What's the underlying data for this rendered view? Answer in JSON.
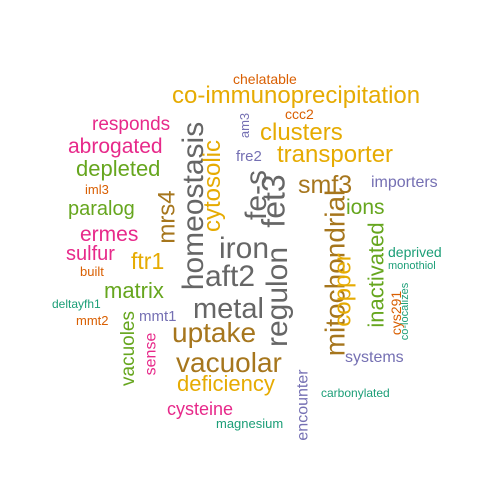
{
  "palette": {
    "teal": "#1b9e77",
    "orange": "#d95f02",
    "purple": "#7570b3",
    "magenta": "#e7298a",
    "green": "#66a61e",
    "gold": "#e6ab02",
    "brown": "#a6761d",
    "gray": "#666666"
  },
  "words": [
    {
      "text": "chelatable",
      "color": "orange"
    },
    {
      "text": "co-immunoprecipitation",
      "color": "gold"
    },
    {
      "text": "responds",
      "color": "magenta"
    },
    {
      "text": "am3",
      "color": "purple"
    },
    {
      "text": "ccc2",
      "color": "orange"
    },
    {
      "text": "clusters",
      "color": "gold"
    },
    {
      "text": "abrogated",
      "color": "magenta"
    },
    {
      "text": "homeostasis",
      "color": "gray"
    },
    {
      "text": "cytosolic",
      "color": "gold"
    },
    {
      "text": "fe-s",
      "color": "gray"
    },
    {
      "text": "fre2",
      "color": "purple"
    },
    {
      "text": "transporter",
      "color": "gold"
    },
    {
      "text": "depleted",
      "color": "green"
    },
    {
      "text": "fet3",
      "color": "gray"
    },
    {
      "text": "smf3",
      "color": "brown"
    },
    {
      "text": "importers",
      "color": "purple"
    },
    {
      "text": "iml3",
      "color": "orange"
    },
    {
      "text": "mrs4",
      "color": "brown"
    },
    {
      "text": "paralog",
      "color": "green"
    },
    {
      "text": "ions",
      "color": "green"
    },
    {
      "text": "ermes",
      "color": "magenta"
    },
    {
      "text": "iron",
      "color": "gray"
    },
    {
      "text": "mitochondrial",
      "color": "brown"
    },
    {
      "text": "sulfur",
      "color": "magenta"
    },
    {
      "text": "inactivated",
      "color": "green"
    },
    {
      "text": "deprived",
      "color": "teal"
    },
    {
      "text": "ftr1",
      "color": "gold"
    },
    {
      "text": "aft2",
      "color": "gray"
    },
    {
      "text": "regulon",
      "color": "gray"
    },
    {
      "text": "built",
      "color": "orange"
    },
    {
      "text": "monothiol",
      "color": "teal"
    },
    {
      "text": "copper",
      "color": "gold"
    },
    {
      "text": "matrix",
      "color": "green"
    },
    {
      "text": "co-localizes",
      "color": "teal"
    },
    {
      "text": "deltayfh1",
      "color": "teal"
    },
    {
      "text": "metal",
      "color": "gray"
    },
    {
      "text": "cys291",
      "color": "orange"
    },
    {
      "text": "mmt2",
      "color": "orange"
    },
    {
      "text": "mmt1",
      "color": "purple"
    },
    {
      "text": "vacuoles",
      "color": "green"
    },
    {
      "text": "sense",
      "color": "magenta"
    },
    {
      "text": "uptake",
      "color": "brown"
    },
    {
      "text": "systems",
      "color": "purple"
    },
    {
      "text": "vacuolar",
      "color": "brown"
    },
    {
      "text": "encounter",
      "color": "purple"
    },
    {
      "text": "deficiency",
      "color": "gold"
    },
    {
      "text": "carbonylated",
      "color": "teal"
    },
    {
      "text": "cysteine",
      "color": "magenta"
    },
    {
      "text": "magnesium",
      "color": "teal"
    }
  ]
}
